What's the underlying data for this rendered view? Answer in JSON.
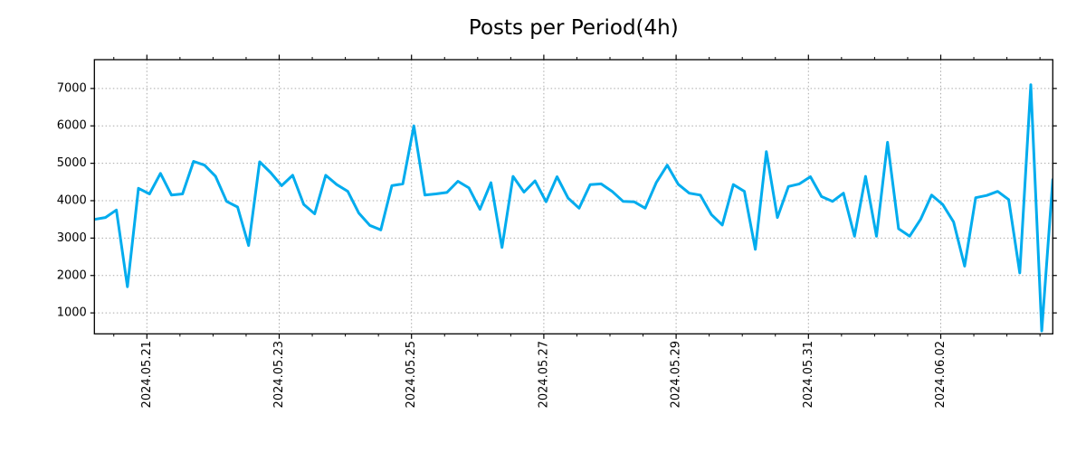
{
  "title": "Posts per Period(4h)",
  "axes": {
    "y_tick_labels": [
      "1000",
      "2000",
      "3000",
      "4000",
      "5000",
      "6000",
      "7000"
    ],
    "x_tick_labels": [
      "2024.05.21",
      "2024.05.23",
      "2024.05.25",
      "2024.05.27",
      "2024.05.29",
      "2024.05.31",
      "2024.06.02"
    ]
  },
  "chart_data": {
    "type": "line",
    "title": "Posts per Period(4h)",
    "xlabel": "",
    "ylabel": "",
    "x_interval_hours": 4,
    "x_tick_labels": [
      "2024.05.21",
      "2024.05.23",
      "2024.05.25",
      "2024.05.27",
      "2024.05.29",
      "2024.05.31",
      "2024.06.02"
    ],
    "y_ticks": [
      1000,
      2000,
      3000,
      4000,
      5000,
      6000,
      7000
    ],
    "ylim": [
      440,
      7770
    ],
    "grid": "dotted",
    "legend_position": "none",
    "line_color": "#00ACEE",
    "series": [
      {
        "name": "posts",
        "values": [
          3500,
          3550,
          3750,
          1700,
          4330,
          4180,
          4730,
          4150,
          4180,
          5050,
          4950,
          4650,
          3980,
          3830,
          2800,
          5040,
          4750,
          4400,
          4680,
          3900,
          3650,
          4680,
          4430,
          4250,
          3670,
          3340,
          3220,
          4400,
          4450,
          6000,
          4150,
          4180,
          4220,
          4520,
          4340,
          3770,
          4480,
          2750,
          4650,
          4230,
          4530,
          3970,
          4640,
          4070,
          3800,
          4430,
          4450,
          4250,
          3980,
          3970,
          3800,
          4480,
          4950,
          4440,
          4200,
          4150,
          3630,
          3350,
          4430,
          4250,
          2700,
          5310,
          3550,
          4380,
          4450,
          4640,
          4110,
          3980,
          4200,
          3050,
          4650,
          3050,
          5560,
          3250,
          3050,
          3500,
          4150,
          3900,
          3430,
          2250,
          4080,
          4140,
          4250,
          4030,
          2070,
          7100,
          520,
          4560
        ]
      }
    ]
  }
}
